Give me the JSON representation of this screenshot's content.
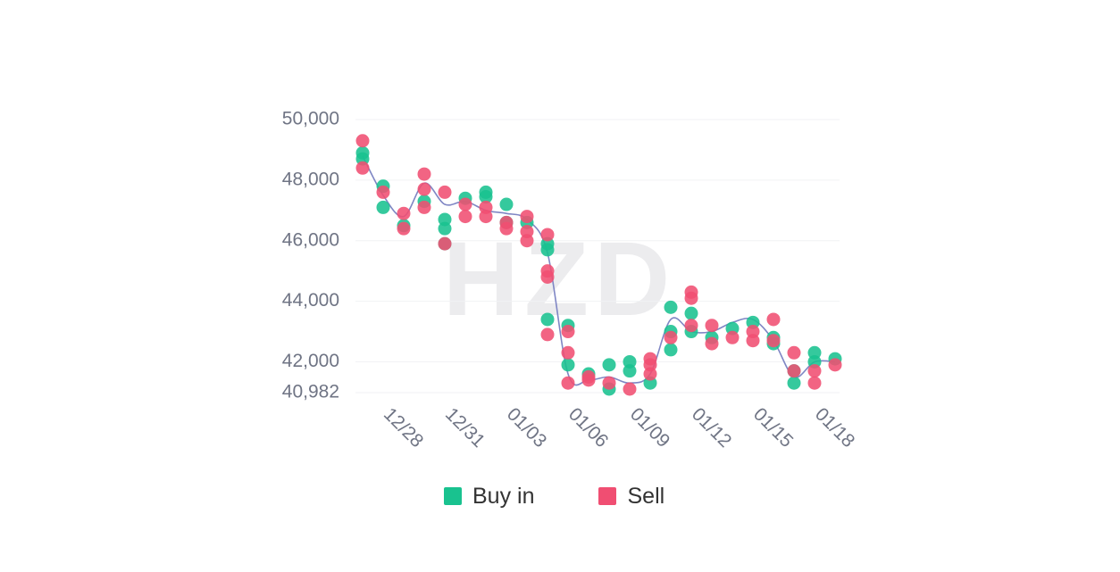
{
  "watermark": "HZD",
  "chart_data": {
    "type": "scatter",
    "ylim": [
      40982,
      50000
    ],
    "y_ticks": [
      "50,000",
      "48,000",
      "46,000",
      "44,000",
      "42,000",
      "40,982"
    ],
    "y_tick_values": [
      50000,
      48000,
      46000,
      44000,
      42000,
      40982
    ],
    "x_start": "12/27",
    "x_end": "01/19",
    "x_ticks": [
      "12/28",
      "12/31",
      "01/03",
      "01/06",
      "01/09",
      "01/12",
      "01/15",
      "01/18"
    ],
    "grid": true,
    "legend_position": "bottom",
    "colors": {
      "buy": "#19c28f",
      "sell": "#f04e72",
      "trend": "#7f86c4"
    },
    "series": [
      {
        "name": "Buy in",
        "points": [
          [
            "12/27",
            48900
          ],
          [
            "12/27",
            48700
          ],
          [
            "12/28",
            47800
          ],
          [
            "12/28",
            47100
          ],
          [
            "12/29",
            46500
          ],
          [
            "12/30",
            47300
          ],
          [
            "12/31",
            46700
          ],
          [
            "12/31",
            46400
          ],
          [
            "12/31",
            45900
          ],
          [
            "01/01",
            47400
          ],
          [
            "01/02",
            47600
          ],
          [
            "01/02",
            47450
          ],
          [
            "01/03",
            47200
          ],
          [
            "01/03",
            46600
          ],
          [
            "01/04",
            46600
          ],
          [
            "01/05",
            45900
          ],
          [
            "01/05",
            45700
          ],
          [
            "01/05",
            43400
          ],
          [
            "01/06",
            43200
          ],
          [
            "01/06",
            41900
          ],
          [
            "01/07",
            41600
          ],
          [
            "01/08",
            41900
          ],
          [
            "01/08",
            41100
          ],
          [
            "01/09",
            42000
          ],
          [
            "01/09",
            41700
          ],
          [
            "01/10",
            41300
          ],
          [
            "01/11",
            43800
          ],
          [
            "01/11",
            43000
          ],
          [
            "01/11",
            42400
          ],
          [
            "01/12",
            43600
          ],
          [
            "01/12",
            43000
          ],
          [
            "01/13",
            42800
          ],
          [
            "01/14",
            43100
          ],
          [
            "01/15",
            43300
          ],
          [
            "01/16",
            42800
          ],
          [
            "01/16",
            42600
          ],
          [
            "01/17",
            41700
          ],
          [
            "01/17",
            41300
          ],
          [
            "01/18",
            42300
          ],
          [
            "01/18",
            42000
          ],
          [
            "01/19",
            42100
          ]
        ]
      },
      {
        "name": "Sell",
        "points": [
          [
            "12/27",
            49300
          ],
          [
            "12/27",
            48400
          ],
          [
            "12/28",
            47600
          ],
          [
            "12/29",
            46900
          ],
          [
            "12/29",
            46400
          ],
          [
            "12/30",
            48200
          ],
          [
            "12/30",
            47700
          ],
          [
            "12/30",
            47100
          ],
          [
            "12/31",
            47600
          ],
          [
            "12/31",
            45900
          ],
          [
            "01/01",
            47200
          ],
          [
            "01/01",
            46800
          ],
          [
            "01/02",
            47100
          ],
          [
            "01/02",
            46800
          ],
          [
            "01/03",
            46600
          ],
          [
            "01/03",
            46400
          ],
          [
            "01/04",
            46800
          ],
          [
            "01/04",
            46300
          ],
          [
            "01/04",
            46000
          ],
          [
            "01/05",
            46200
          ],
          [
            "01/05",
            45000
          ],
          [
            "01/05",
            44800
          ],
          [
            "01/05",
            42900
          ],
          [
            "01/06",
            43000
          ],
          [
            "01/06",
            42300
          ],
          [
            "01/06",
            41300
          ],
          [
            "01/07",
            41500
          ],
          [
            "01/07",
            41400
          ],
          [
            "01/08",
            41300
          ],
          [
            "01/09",
            41100
          ],
          [
            "01/10",
            42100
          ],
          [
            "01/10",
            41900
          ],
          [
            "01/10",
            41600
          ],
          [
            "01/11",
            42800
          ],
          [
            "01/12",
            44300
          ],
          [
            "01/12",
            44100
          ],
          [
            "01/12",
            43200
          ],
          [
            "01/13",
            43200
          ],
          [
            "01/13",
            42600
          ],
          [
            "01/14",
            42800
          ],
          [
            "01/15",
            43000
          ],
          [
            "01/15",
            42700
          ],
          [
            "01/16",
            43400
          ],
          [
            "01/16",
            42700
          ],
          [
            "01/17",
            42300
          ],
          [
            "01/17",
            41700
          ],
          [
            "01/18",
            41700
          ],
          [
            "01/18",
            41300
          ],
          [
            "01/19",
            41900
          ]
        ]
      }
    ],
    "trend_line": [
      [
        "12/27",
        48800
      ],
      [
        "12/28",
        47500
      ],
      [
        "12/29",
        46800
      ],
      [
        "12/30",
        47900
      ],
      [
        "12/31",
        47200
      ],
      [
        "01/01",
        47300
      ],
      [
        "01/02",
        47000
      ],
      [
        "01/03",
        46900
      ],
      [
        "01/04",
        46700
      ],
      [
        "01/05",
        45600
      ],
      [
        "01/06",
        41600
      ],
      [
        "01/07",
        41400
      ],
      [
        "01/08",
        41500
      ],
      [
        "01/09",
        41300
      ],
      [
        "01/10",
        41600
      ],
      [
        "01/11",
        43400
      ],
      [
        "01/12",
        43000
      ],
      [
        "01/13",
        43000
      ],
      [
        "01/14",
        43300
      ],
      [
        "01/15",
        43400
      ],
      [
        "01/16",
        42700
      ],
      [
        "01/17",
        41500
      ],
      [
        "01/18",
        42000
      ],
      [
        "01/19",
        42000
      ]
    ]
  }
}
